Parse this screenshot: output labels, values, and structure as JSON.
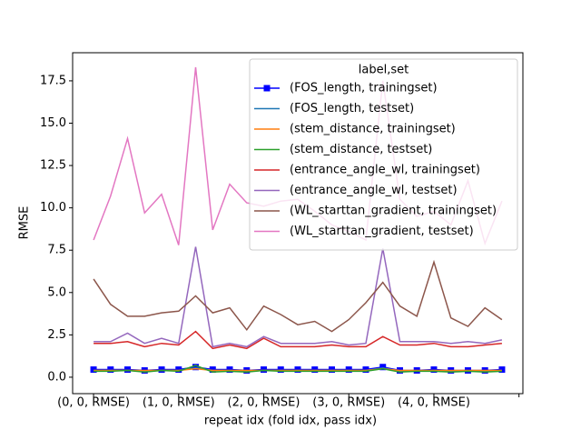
{
  "chart_data": {
    "type": "line",
    "xlabel": "repeat idx (fold idx, pass idx)",
    "ylabel": "RMSE",
    "categories": [
      "(0, 0, RMSE)",
      null,
      null,
      null,
      null,
      "(1, 0, RMSE)",
      null,
      null,
      null,
      null,
      "(2, 0, RMSE)",
      null,
      null,
      null,
      null,
      "(3, 0, RMSE)",
      null,
      null,
      null,
      null,
      "(4, 0, RMSE)",
      null,
      null,
      null,
      null
    ],
    "xlim": [
      -1.23,
      25.23
    ],
    "xticks": [
      0,
      5,
      10,
      15,
      20,
      25
    ],
    "ylim": [
      -0.97,
      19.16
    ],
    "yticks": [
      {
        "value": 0,
        "label": "0.0"
      },
      2.5,
      {
        "value": 5,
        "label": "5.0"
      },
      7.5,
      {
        "value": 10,
        "label": "10.0"
      },
      12.5,
      {
        "value": 15,
        "label": "15.0"
      },
      17.5
    ],
    "legend": "upper right",
    "legend_title": "label,set",
    "series": [
      {
        "name": "(FOS_length, trainingset)",
        "color": "#0000ff",
        "marker": "square",
        "values": [
          0.45,
          0.45,
          0.45,
          0.4,
          0.45,
          0.45,
          0.6,
          0.45,
          0.45,
          0.4,
          0.45,
          0.45,
          0.45,
          0.45,
          0.45,
          0.45,
          0.45,
          0.6,
          0.4,
          0.4,
          0.45,
          0.4,
          0.4,
          0.4,
          0.45
        ]
      },
      {
        "name": "(FOS_length, testset)",
        "color": "#1f77b4",
        "values": [
          0.4,
          0.4,
          0.4,
          0.35,
          0.4,
          0.4,
          0.55,
          0.4,
          0.4,
          0.35,
          0.4,
          0.4,
          0.4,
          0.4,
          0.4,
          0.4,
          0.4,
          0.55,
          0.35,
          0.35,
          0.4,
          0.35,
          0.35,
          0.35,
          0.4
        ]
      },
      {
        "name": "(stem_distance, trainingset)",
        "color": "#ff7f0e",
        "values": [
          0.4,
          0.4,
          0.4,
          0.4,
          0.4,
          0.4,
          0.5,
          0.4,
          0.4,
          0.4,
          0.4,
          0.4,
          0.4,
          0.4,
          0.4,
          0.4,
          0.4,
          0.5,
          0.4,
          0.4,
          0.4,
          0.4,
          0.4,
          0.4,
          0.4
        ]
      },
      {
        "name": "(stem_distance, testset)",
        "color": "#2ca02c",
        "values": [
          0.35,
          0.35,
          0.4,
          0.3,
          0.4,
          0.35,
          0.7,
          0.3,
          0.35,
          0.3,
          0.4,
          0.35,
          0.35,
          0.35,
          0.35,
          0.35,
          0.35,
          0.5,
          0.3,
          0.35,
          0.35,
          0.3,
          0.35,
          0.3,
          0.35
        ]
      },
      {
        "name": "(entrance_angle_wl, trainingset)",
        "color": "#d62728",
        "values": [
          2.0,
          2.0,
          2.1,
          1.8,
          2.0,
          1.9,
          2.7,
          1.7,
          1.9,
          1.7,
          2.3,
          1.8,
          1.8,
          1.8,
          1.9,
          1.8,
          1.8,
          2.4,
          1.9,
          1.9,
          2.0,
          1.8,
          1.8,
          1.9,
          2.0
        ]
      },
      {
        "name": "(entrance_angle_wl, testset)",
        "color": "#9467bd",
        "values": [
          2.1,
          2.1,
          2.6,
          2.0,
          2.3,
          2.0,
          7.7,
          1.8,
          2.0,
          1.8,
          2.4,
          2.0,
          2.0,
          2.0,
          2.1,
          1.9,
          2.0,
          7.6,
          2.1,
          2.1,
          2.1,
          2.0,
          2.1,
          2.0,
          2.2
        ]
      },
      {
        "name": "(WL_starttan_gradient, trainingset)",
        "color": "#8c564b",
        "values": [
          5.8,
          4.3,
          3.6,
          3.6,
          3.8,
          3.9,
          4.8,
          3.8,
          4.1,
          2.8,
          4.2,
          3.7,
          3.1,
          3.3,
          2.7,
          3.4,
          4.4,
          5.6,
          4.2,
          3.6,
          6.8,
          3.5,
          3.0,
          4.1,
          3.4
        ]
      },
      {
        "name": "(WL_starttan_gradient, testset)",
        "color": "#e377c2",
        "values": [
          8.1,
          10.7,
          14.1,
          9.7,
          10.8,
          7.8,
          18.3,
          8.7,
          11.4,
          10.3,
          10.1,
          10.4,
          10.5,
          9.8,
          9.0,
          8.6,
          8.1,
          17.5,
          10.5,
          9.5,
          9.8,
          9.0,
          11.6,
          7.9,
          10.4
        ]
      }
    ]
  }
}
